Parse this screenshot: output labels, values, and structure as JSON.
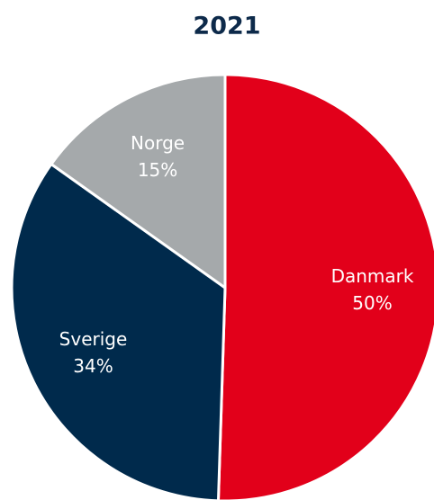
{
  "chart_data": {
    "type": "pie",
    "title": "2021",
    "categories": [
      "Danmark",
      "Sverige",
      "Norge"
    ],
    "values": [
      50,
      34,
      15
    ],
    "value_labels": [
      "50%",
      "34%",
      "15%"
    ],
    "colors": [
      "#e2001a",
      "#002a4c",
      "#a5a9ab"
    ]
  }
}
